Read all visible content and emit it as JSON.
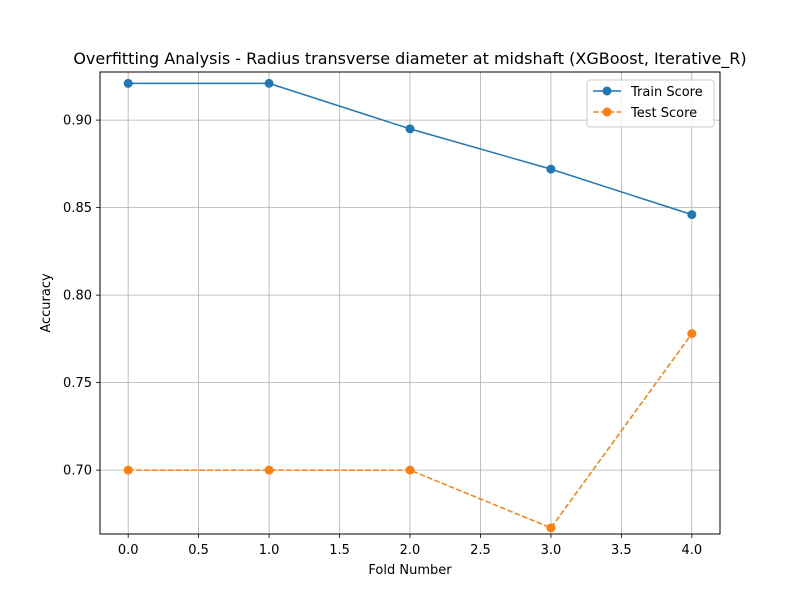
{
  "chart_data": {
    "type": "line",
    "title": "Overfitting Analysis - Radius transverse diameter at midshaft (XGBoost, Iterative_R)",
    "xlabel": "Fold Number",
    "ylabel": "Accuracy",
    "x": [
      0,
      1,
      2,
      3,
      4
    ],
    "xlim": [
      -0.2,
      4.2
    ],
    "ylim": [
      0.6635,
      0.9275
    ],
    "xticks": [
      "0.0",
      "0.5",
      "1.0",
      "1.5",
      "2.0",
      "2.5",
      "3.0",
      "3.5",
      "4.0"
    ],
    "yticks": [
      "0.70",
      "0.75",
      "0.80",
      "0.85",
      "0.90"
    ],
    "grid": true,
    "legend_position": "top-right",
    "series": [
      {
        "name": "Train Score",
        "values": [
          0.921,
          0.921,
          0.895,
          0.872,
          0.846
        ],
        "color": "#1f77b4",
        "linestyle": "solid",
        "marker": "circle"
      },
      {
        "name": "Test Score",
        "values": [
          0.7,
          0.7,
          0.7,
          0.667,
          0.778
        ],
        "color": "#ff7f0e",
        "linestyle": "dashed",
        "marker": "circle"
      }
    ]
  }
}
